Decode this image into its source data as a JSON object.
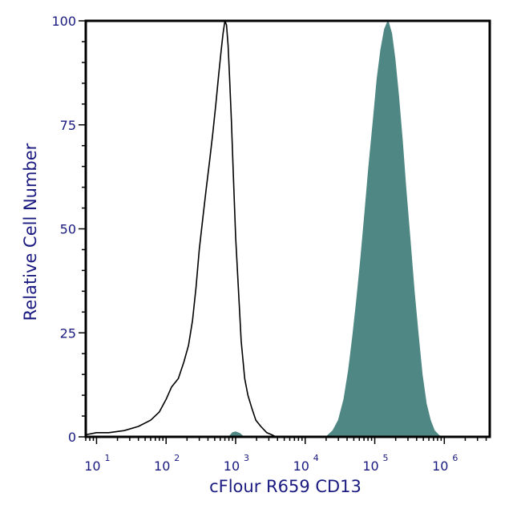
{
  "chart_data": {
    "type": "area",
    "xlabel": "cFlour R659 CD13",
    "ylabel": "Relative Cell Number",
    "x_scale": "log",
    "xlim": [
      7,
      4500000
    ],
    "ylim": [
      0,
      100
    ],
    "x_ticks": [
      {
        "base": "10",
        "exp": "1",
        "value": 10
      },
      {
        "base": "10",
        "exp": "2",
        "value": 100
      },
      {
        "base": "10",
        "exp": "3",
        "value": 1000
      },
      {
        "base": "10",
        "exp": "4",
        "value": 10000
      },
      {
        "base": "10",
        "exp": "5",
        "value": 100000
      },
      {
        "base": "10",
        "exp": "6",
        "value": 1000000
      }
    ],
    "y_ticks": [
      {
        "label": "0",
        "value": 0
      },
      {
        "label": "25",
        "value": 25
      },
      {
        "label": "50",
        "value": 50
      },
      {
        "label": "75",
        "value": 75
      },
      {
        "label": "100",
        "value": 100
      }
    ],
    "grid": false,
    "colors": {
      "filled": "#4e8784",
      "outline": "#000000",
      "text": "#1a1a80"
    },
    "series": [
      {
        "style": "outline",
        "points": [
          [
            7,
            0.5
          ],
          [
            10,
            1
          ],
          [
            15,
            1
          ],
          [
            25,
            1.5
          ],
          [
            40,
            2.5
          ],
          [
            60,
            4
          ],
          [
            80,
            6
          ],
          [
            100,
            9
          ],
          [
            120,
            12
          ],
          [
            150,
            14
          ],
          [
            180,
            18
          ],
          [
            210,
            22
          ],
          [
            240,
            28
          ],
          [
            270,
            36
          ],
          [
            300,
            45
          ],
          [
            340,
            53
          ],
          [
            380,
            60
          ],
          [
            420,
            66
          ],
          [
            470,
            73
          ],
          [
            520,
            80
          ],
          [
            570,
            87
          ],
          [
            620,
            93
          ],
          [
            660,
            97
          ],
          [
            700,
            100
          ],
          [
            740,
            99
          ],
          [
            780,
            94
          ],
          [
            820,
            86
          ],
          [
            870,
            76
          ],
          [
            930,
            62
          ],
          [
            1000,
            48
          ],
          [
            1100,
            35
          ],
          [
            1200,
            23
          ],
          [
            1350,
            14
          ],
          [
            1500,
            10
          ],
          [
            1700,
            7
          ],
          [
            1950,
            4
          ],
          [
            2300,
            2.5
          ],
          [
            2800,
            1
          ],
          [
            3300,
            0.5
          ],
          [
            3800,
            0
          ]
        ]
      },
      {
        "style": "filled",
        "points": [
          [
            20000,
            0
          ],
          [
            25000,
            1.5
          ],
          [
            30000,
            4
          ],
          [
            36000,
            9
          ],
          [
            42000,
            16
          ],
          [
            48000,
            24
          ],
          [
            55000,
            33
          ],
          [
            63000,
            43
          ],
          [
            72000,
            54
          ],
          [
            82000,
            65
          ],
          [
            95000,
            76
          ],
          [
            108000,
            86
          ],
          [
            122000,
            93
          ],
          [
            138000,
            98
          ],
          [
            155000,
            100
          ],
          [
            175000,
            97
          ],
          [
            195000,
            91
          ],
          [
            220000,
            82
          ],
          [
            250000,
            71
          ],
          [
            280000,
            60
          ],
          [
            320000,
            48
          ],
          [
            370000,
            35
          ],
          [
            420000,
            25
          ],
          [
            480000,
            15
          ],
          [
            550000,
            8
          ],
          [
            630000,
            4
          ],
          [
            720000,
            1.5
          ],
          [
            820000,
            0.5
          ],
          [
            900000,
            0
          ]
        ]
      },
      {
        "style": "filled",
        "points": [
          [
            800,
            0
          ],
          [
            900,
            1
          ],
          [
            1000,
            1.2
          ],
          [
            1150,
            0.8
          ],
          [
            1300,
            0
          ]
        ]
      }
    ]
  }
}
